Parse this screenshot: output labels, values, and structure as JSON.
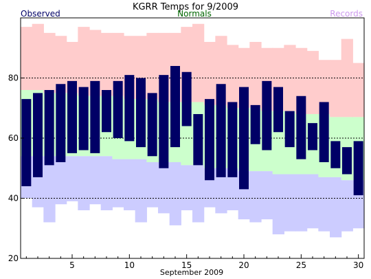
{
  "chart_data": {
    "type": "bar",
    "title": "KGRR Temps for 9/2009",
    "xlabel": "September 2009",
    "ylabel": "",
    "legend": [
      {
        "name": "Observed",
        "color": "#000066"
      },
      {
        "name": "Normals",
        "color": "#006600"
      },
      {
        "name": "Records",
        "color": "#cc99ee"
      }
    ],
    "legend_placement": "top",
    "xlim": [
      1,
      30
    ],
    "ylim": [
      20,
      100
    ],
    "x_ticks": [
      5,
      10,
      15,
      20,
      25,
      30
    ],
    "y_ticks": [
      20,
      40,
      60,
      80
    ],
    "grid_lines": [
      40,
      60,
      80
    ],
    "days": [
      1,
      2,
      3,
      4,
      5,
      6,
      7,
      8,
      9,
      10,
      11,
      12,
      13,
      14,
      15,
      16,
      17,
      18,
      19,
      20,
      21,
      22,
      23,
      24,
      25,
      26,
      27,
      28,
      29,
      30
    ],
    "observed_high": [
      73,
      75,
      76,
      78,
      79,
      77,
      79,
      76,
      79,
      81,
      80,
      75,
      81,
      84,
      82,
      68,
      73,
      78,
      72,
      77,
      71,
      79,
      77,
      69,
      74,
      65,
      72,
      59,
      57,
      59
    ],
    "observed_low": [
      44,
      47,
      51,
      52,
      55,
      56,
      55,
      62,
      60,
      59,
      57,
      54,
      50,
      57,
      64,
      51,
      46,
      47,
      47,
      43,
      58,
      56,
      62,
      57,
      53,
      56,
      52,
      50,
      48,
      41
    ],
    "normal_high": [
      76,
      76,
      75,
      75,
      75,
      74,
      74,
      74,
      74,
      73,
      73,
      73,
      72,
      72,
      72,
      72,
      71,
      71,
      70,
      70,
      70,
      69,
      69,
      69,
      68,
      68,
      68,
      67,
      67,
      67
    ],
    "normal_low": [
      54,
      54,
      54,
      54,
      54,
      54,
      54,
      54,
      53,
      53,
      53,
      52,
      52,
      52,
      51,
      51,
      50,
      50,
      50,
      49,
      49,
      49,
      48,
      48,
      48,
      48,
      47,
      47,
      46,
      46
    ],
    "record_high": [
      97,
      98,
      95,
      94,
      92,
      97,
      96,
      95,
      95,
      94,
      94,
      95,
      95,
      95,
      97,
      98,
      92,
      94,
      91,
      90,
      92,
      90,
      90,
      91,
      90,
      89,
      86,
      86,
      93,
      85
    ],
    "record_low": [
      40,
      37,
      32,
      38,
      39,
      36,
      38,
      36,
      37,
      36,
      32,
      37,
      35,
      31,
      36,
      32,
      37,
      35,
      36,
      33,
      32,
      33,
      28,
      29,
      29,
      30,
      29,
      27,
      29,
      30
    ],
    "colors": {
      "observed": "#000066",
      "normal": "#ccffcc",
      "record_high_band": "#ffcccc",
      "record_low_band": "#ccccff",
      "title": "#000000",
      "observed_label": "#000066",
      "normals_label": "#006600",
      "records_label": "#cc99ee"
    }
  }
}
